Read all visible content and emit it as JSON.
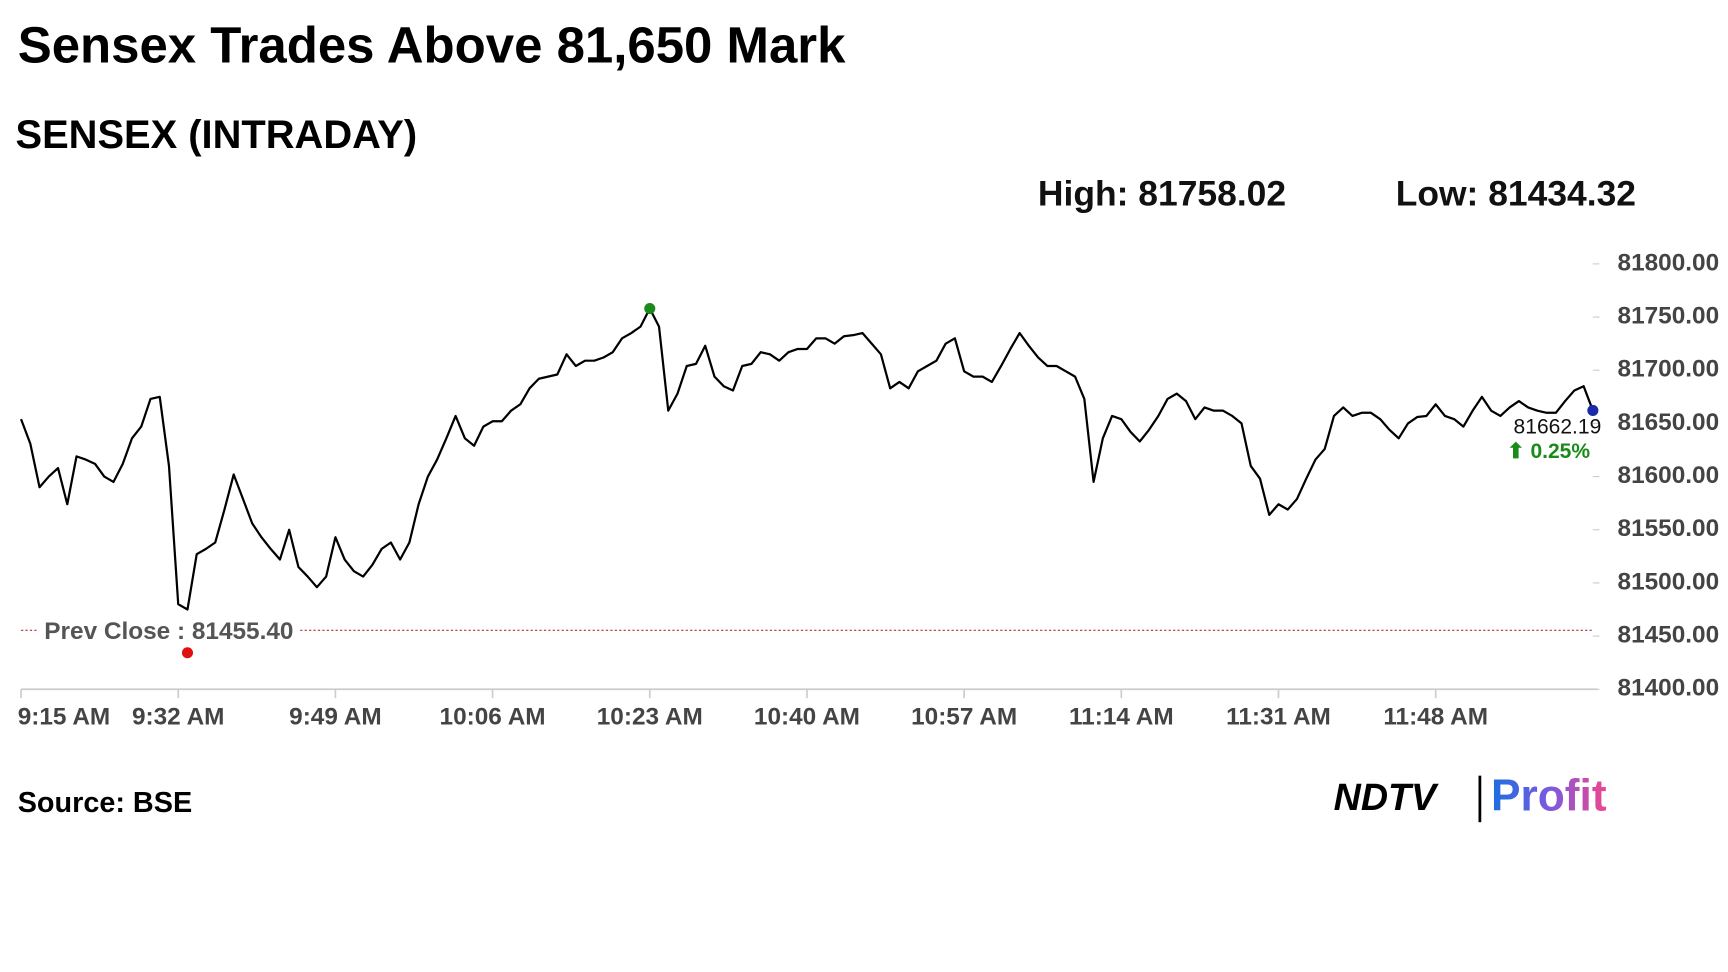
{
  "chart_data": {
    "type": "line",
    "title": "Sensex Trades Above 81,650 Mark",
    "subtitle": "SENSEX (INTRADAY)",
    "high": {
      "value": 81758.02,
      "label": "High: 81758.02"
    },
    "low": {
      "value": 81434.32,
      "label": "Low: 81434.32"
    },
    "prev_close": {
      "value": 81455.4,
      "label": "Prev Close : 81455.40"
    },
    "change_label": "⬆ 0.25%",
    "source": "Source: BSE",
    "brand": [
      "NDTV",
      "Profit"
    ],
    "x": [
      "9:15 AM",
      "9:16 AM",
      "9:17 AM",
      "9:18 AM",
      "9:19 AM",
      "9:20 AM",
      "9:21 AM",
      "9:22 AM",
      "9:23 AM",
      "9:24 AM",
      "9:25 AM",
      "9:26 AM",
      "9:27 AM",
      "9:28 AM",
      "9:29 AM",
      "9:30 AM",
      "9:31 AM",
      "9:32 AM",
      "9:33 AM",
      "9:34 AM",
      "9:35 AM",
      "9:36 AM",
      "9:37 AM",
      "9:38 AM",
      "9:39 AM",
      "9:40 AM",
      "9:41 AM",
      "9:42 AM",
      "9:43 AM",
      "9:44 AM",
      "9:45 AM",
      "9:46 AM",
      "9:47 AM",
      "9:48 AM",
      "9:49 AM",
      "9:50 AM",
      "9:51 AM",
      "9:52 AM",
      "9:53 AM",
      "9:54 AM",
      "9:55 AM",
      "9:56 AM",
      "9:57 AM",
      "9:58 AM",
      "9:59 AM",
      "10:00 AM",
      "10:01 AM",
      "10:02 AM",
      "10:03 AM",
      "10:04 AM",
      "10:05 AM",
      "10:06 AM",
      "10:07 AM",
      "10:08 AM",
      "10:09 AM",
      "10:10 AM",
      "10:11 AM",
      "10:12 AM",
      "10:13 AM",
      "10:14 AM",
      "10:15 AM",
      "10:16 AM",
      "10:17 AM",
      "10:18 AM",
      "10:19 AM",
      "10:20 AM",
      "10:21 AM",
      "10:22 AM",
      "10:23 AM",
      "10:24 AM",
      "10:25 AM",
      "10:26 AM",
      "10:27 AM",
      "10:28 AM",
      "10:29 AM",
      "10:30 AM",
      "10:31 AM",
      "10:32 AM",
      "10:33 AM",
      "10:34 AM",
      "10:35 AM",
      "10:36 AM",
      "10:37 AM",
      "10:38 AM",
      "10:39 AM",
      "10:40 AM",
      "10:41 AM",
      "10:42 AM",
      "10:43 AM",
      "10:44 AM",
      "10:45 AM",
      "10:46 AM",
      "10:47 AM",
      "10:48 AM",
      "10:49 AM",
      "10:50 AM",
      "10:51 AM",
      "10:52 AM",
      "10:53 AM",
      "10:54 AM",
      "10:55 AM",
      "10:56 AM",
      "10:57 AM",
      "10:58 AM",
      "10:59 AM",
      "11:00 AM",
      "11:01 AM",
      "11:02 AM",
      "11:03 AM",
      "11:04 AM",
      "11:05 AM",
      "11:06 AM",
      "11:07 AM",
      "11:08 AM",
      "11:09 AM",
      "11:10 AM",
      "11:11 AM",
      "11:12 AM",
      "11:13 AM",
      "11:14 AM",
      "11:15 AM",
      "11:16 AM",
      "11:17 AM",
      "11:18 AM",
      "11:19 AM",
      "11:20 AM",
      "11:21 AM",
      "11:22 AM",
      "11:23 AM",
      "11:24 AM",
      "11:25 AM",
      "11:26 AM",
      "11:27 AM",
      "11:28 AM",
      "11:29 AM",
      "11:30 AM",
      "11:31 AM",
      "11:32 AM",
      "11:33 AM",
      "11:34 AM",
      "11:35 AM",
      "11:36 AM",
      "11:37 AM",
      "11:38 AM",
      "11:39 AM",
      "11:40 AM",
      "11:41 AM",
      "11:42 AM",
      "11:43 AM",
      "11:44 AM",
      "11:45 AM",
      "11:46 AM",
      "11:47 AM",
      "11:48 AM",
      "11:49 AM",
      "11:50 AM",
      "11:51 AM",
      "11:52 AM",
      "11:53 AM",
      "11:54 AM",
      "11:55 AM",
      "11:56 AM",
      "11:57 AM",
      "11:58 AM",
      "11:59 AM",
      "12:00 PM",
      "12:01 PM",
      "12:02 PM",
      "12:03 PM",
      "12:04 PM",
      "12:05 PM"
    ],
    "series": [
      {
        "name": "SENSEX",
        "color": "#000000",
        "values": [
          81654,
          81631,
          81590,
          81600,
          81608,
          81574,
          81619,
          81616,
          81612,
          81600,
          81595,
          81612,
          81636,
          81647,
          81673,
          81675,
          81610,
          81480,
          81475,
          81527,
          81532,
          81538,
          81569,
          81602,
          81579,
          81556,
          81543,
          81532,
          81522,
          81550,
          81515,
          81506,
          81496,
          81506,
          81543,
          81522,
          81511,
          81506,
          81517,
          81532,
          81538,
          81522,
          81538,
          81574,
          81600,
          81616,
          81636,
          81657,
          81636,
          81629,
          81647,
          81652,
          81652,
          81662,
          81668,
          81683,
          81692,
          81694,
          81696,
          81715,
          81704,
          81709,
          81709,
          81712,
          81717,
          81730,
          81735,
          81741,
          81758.02,
          81741,
          81662,
          81678,
          81704,
          81706,
          81723,
          81694,
          81685,
          81681,
          81704,
          81706,
          81717,
          81715,
          81709,
          81717,
          81720,
          81720,
          81730,
          81730,
          81725,
          81732,
          81733,
          81735,
          81725,
          81715,
          81683,
          81689,
          81683,
          81699,
          81704,
          81709,
          81725,
          81730,
          81699,
          81694,
          81694,
          81689,
          81704,
          81720,
          81735,
          81723,
          81712,
          81704,
          81704,
          81699,
          81694,
          81673,
          81595,
          81636,
          81657,
          81654,
          81642,
          81633,
          81644,
          81657,
          81673,
          81678,
          81671,
          81654,
          81665,
          81662,
          81662,
          81657,
          81650,
          81610,
          81598,
          81564,
          81574,
          81569,
          81579,
          81598,
          81616,
          81626,
          81657,
          81665,
          81657,
          81660,
          81660,
          81654,
          81644,
          81636,
          81650,
          81656,
          81657,
          81668,
          81657,
          81654,
          81647,
          81662,
          81675,
          81662,
          81657,
          81665,
          81671,
          81665,
          81662,
          81660,
          81660,
          81671,
          81681,
          81685,
          81662.19
        ]
      }
    ],
    "xticks": [
      "9:15 AM",
      "9:32 AM",
      "9:49 AM",
      "10:06 AM",
      "10:23 AM",
      "10:40 AM",
      "10:57 AM",
      "11:14 AM",
      "11:31 AM",
      "11:48 AM"
    ],
    "ylim": [
      81400,
      81800
    ],
    "yticks": [
      {
        "value": 81400,
        "label": "81400.00"
      },
      {
        "value": 81450,
        "label": "81450.00"
      },
      {
        "value": 81500,
        "label": "81500.00"
      },
      {
        "value": 81550,
        "label": "81550.00"
      },
      {
        "value": 81600,
        "label": "81600.00"
      },
      {
        "value": 81650,
        "label": "81650.00"
      },
      {
        "value": 81700,
        "label": "81700.00"
      },
      {
        "value": 81750,
        "label": "81750.00"
      },
      {
        "value": 81800,
        "label": "81800.00"
      }
    ],
    "grid": false
  }
}
